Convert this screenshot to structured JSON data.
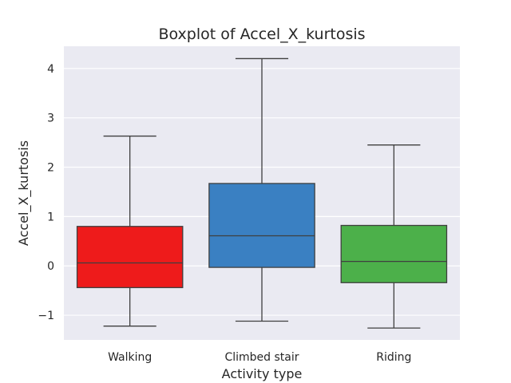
{
  "chart_data": {
    "type": "boxplot",
    "title": "Boxplot of Accel_X_kurtosis",
    "xlabel": "Activity type",
    "ylabel": "Accel_X_kurtosis",
    "ylim": [
      -1.5,
      4.45
    ],
    "yticks": [
      -1,
      0,
      1,
      2,
      3,
      4
    ],
    "ytick_labels": [
      "−1",
      "0",
      "1",
      "2",
      "3",
      "4"
    ],
    "grid": true,
    "background": "#eaeaf2",
    "categories": [
      "Walking",
      "Climbed stair",
      "Riding"
    ],
    "boxes": [
      {
        "category": "Walking",
        "whisker_low": -1.22,
        "q1": -0.44,
        "median": 0.06,
        "q3": 0.8,
        "whisker_high": 2.63,
        "color": "#ee1b1b"
      },
      {
        "category": "Climbed stair",
        "whisker_low": -1.12,
        "q1": -0.03,
        "median": 0.61,
        "q3": 1.67,
        "whisker_high": 4.2,
        "color": "#3a80c2"
      },
      {
        "category": "Riding",
        "whisker_low": -1.26,
        "q1": -0.34,
        "median": 0.09,
        "q3": 0.82,
        "whisker_high": 2.45,
        "color": "#4cb04a"
      }
    ]
  }
}
